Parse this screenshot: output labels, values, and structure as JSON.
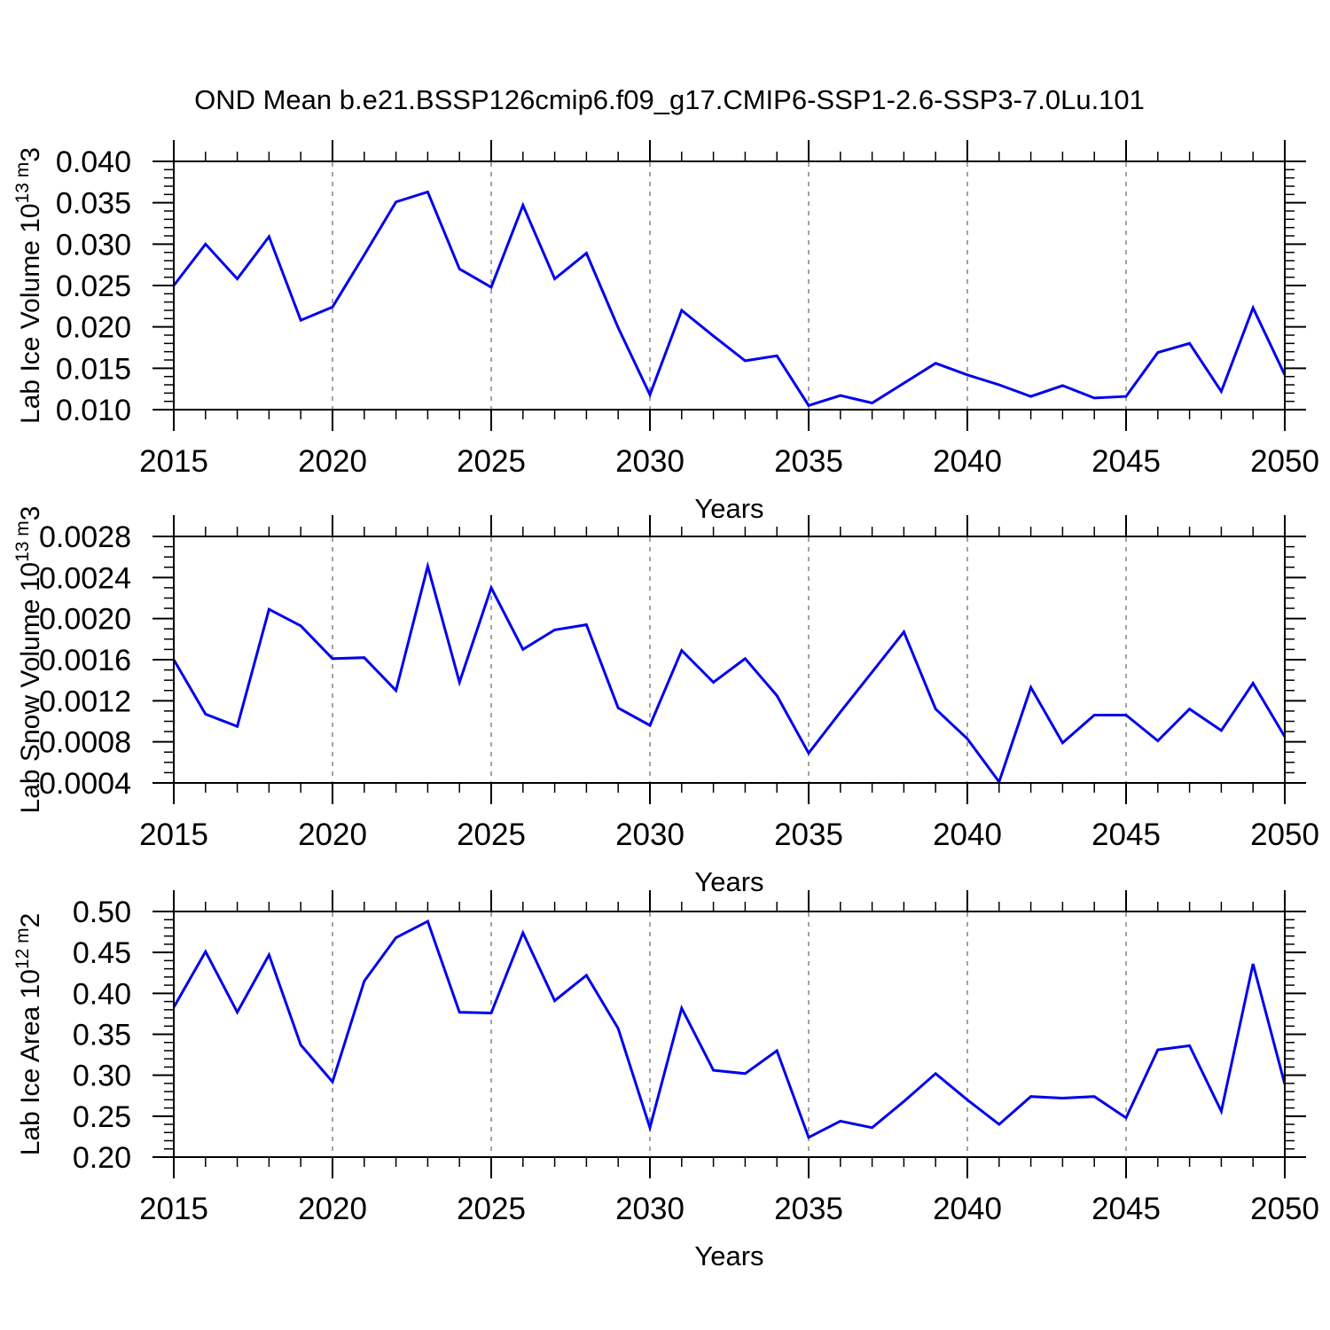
{
  "title": "OND Mean b.e21.BSSP126cmip6.f09_g17.CMIP6-SSP1-2.6-SSP3-7.0Lu.101",
  "colors": {
    "series_line": "#0000EE",
    "gridline": "#8C8C8C",
    "axis": "#000000",
    "text": "#000000",
    "background": "#FFFFFF"
  },
  "x_axis": {
    "label": "Years",
    "min": 2015,
    "max": 2050,
    "major_tick_years": [
      2015,
      2020,
      2025,
      2030,
      2035,
      2040,
      2045,
      2050
    ],
    "major_tick_labels": [
      "2015",
      "2020",
      "2025",
      "2030",
      "2035",
      "2040",
      "2045",
      "2050"
    ],
    "minor_tick_step_years": 1,
    "dashed_gridline_years": [
      2020,
      2025,
      2030,
      2035,
      2040,
      2045
    ]
  },
  "chart_data": [
    {
      "type": "line",
      "title": "",
      "ylabel": "Lab Ice Volume 10^13 m^3",
      "xlabel": "Years",
      "ylim": [
        0.01,
        0.04
      ],
      "y_tick_values": [
        0.04,
        0.035,
        0.03,
        0.025,
        0.02,
        0.015,
        0.01
      ],
      "y_tick_labels": [
        "0.040",
        "0.035",
        "0.030",
        "0.025",
        "0.020",
        "0.015",
        "0.010"
      ],
      "y_minor_step": 0.001,
      "grid": "vertical-dashed",
      "legend": "none",
      "x": [
        2015,
        2016,
        2017,
        2018,
        2019,
        2020,
        2021,
        2022,
        2023,
        2024,
        2025,
        2026,
        2027,
        2028,
        2029,
        2030,
        2031,
        2032,
        2033,
        2034,
        2035,
        2036,
        2037,
        2038,
        2039,
        2040,
        2041,
        2042,
        2043,
        2044,
        2045,
        2046,
        2047,
        2048,
        2049,
        2050
      ],
      "values": [
        0.025,
        0.03,
        0.0258,
        0.0309,
        0.0208,
        0.0224,
        0.0287,
        0.0351,
        0.0363,
        0.027,
        0.0248,
        0.0347,
        0.0258,
        0.0289,
        0.0199,
        0.0118,
        0.022,
        0.0189,
        0.0159,
        0.0165,
        0.0105,
        0.0117,
        0.0108,
        0.0132,
        0.0156,
        0.0142,
        0.013,
        0.0116,
        0.0129,
        0.0114,
        0.0116,
        0.0169,
        0.018,
        0.0122,
        0.0223,
        0.0142
      ]
    },
    {
      "type": "line",
      "title": "",
      "ylabel": "Lab Snow Volume 10^13 m^3",
      "xlabel": "Years",
      "ylim": [
        0.0004,
        0.0028
      ],
      "y_tick_values": [
        0.0028,
        0.0024,
        0.002,
        0.0016,
        0.0012,
        0.0008,
        0.0004
      ],
      "y_tick_labels": [
        "0.0028",
        "0.0024",
        "0.0020",
        "0.0016",
        "0.0012",
        "0.0008",
        "0.0004"
      ],
      "y_minor_step": 0.0001,
      "grid": "vertical-dashed",
      "legend": "none",
      "x": [
        2015,
        2016,
        2017,
        2018,
        2019,
        2020,
        2021,
        2022,
        2023,
        2024,
        2025,
        2026,
        2027,
        2028,
        2029,
        2030,
        2031,
        2032,
        2033,
        2034,
        2035,
        2036,
        2037,
        2038,
        2039,
        2040,
        2041,
        2042,
        2043,
        2044,
        2045,
        2046,
        2047,
        2048,
        2049,
        2050
      ],
      "values": [
        0.0016,
        0.00107,
        0.00095,
        0.00209,
        0.00193,
        0.00161,
        0.00162,
        0.0013,
        0.00251,
        0.00138,
        0.0023,
        0.0017,
        0.00189,
        0.00194,
        0.00113,
        0.00096,
        0.00169,
        0.00138,
        0.00161,
        0.00125,
        0.00069,
        0.00109,
        0.00148,
        0.00187,
        0.00112,
        0.00083,
        0.00041,
        0.00133,
        0.00079,
        0.00106,
        0.00106,
        0.00081,
        0.00112,
        0.00091,
        0.00137,
        0.00085
      ]
    },
    {
      "type": "line",
      "title": "",
      "ylabel": "Lab Ice Area 10^12 m^2",
      "xlabel": "Years",
      "ylim": [
        0.2,
        0.5
      ],
      "y_tick_values": [
        0.5,
        0.45,
        0.4,
        0.35,
        0.3,
        0.25,
        0.2
      ],
      "y_tick_labels": [
        "0.50",
        "0.45",
        "0.40",
        "0.35",
        "0.30",
        "0.25",
        "0.20"
      ],
      "y_minor_step": 0.01,
      "grid": "vertical-dashed",
      "legend": "none",
      "x": [
        2015,
        2016,
        2017,
        2018,
        2019,
        2020,
        2021,
        2022,
        2023,
        2024,
        2025,
        2026,
        2027,
        2028,
        2029,
        2030,
        2031,
        2032,
        2033,
        2034,
        2035,
        2036,
        2037,
        2038,
        2039,
        2040,
        2041,
        2042,
        2043,
        2044,
        2045,
        2046,
        2047,
        2048,
        2049,
        2050
      ],
      "values": [
        0.383,
        0.451,
        0.377,
        0.447,
        0.337,
        0.292,
        0.415,
        0.468,
        0.488,
        0.377,
        0.376,
        0.474,
        0.391,
        0.422,
        0.357,
        0.236,
        0.382,
        0.306,
        0.302,
        0.33,
        0.224,
        0.244,
        0.236,
        0.268,
        0.302,
        0.27,
        0.24,
        0.274,
        0.272,
        0.274,
        0.248,
        0.331,
        0.336,
        0.256,
        0.436,
        0.289
      ]
    }
  ]
}
